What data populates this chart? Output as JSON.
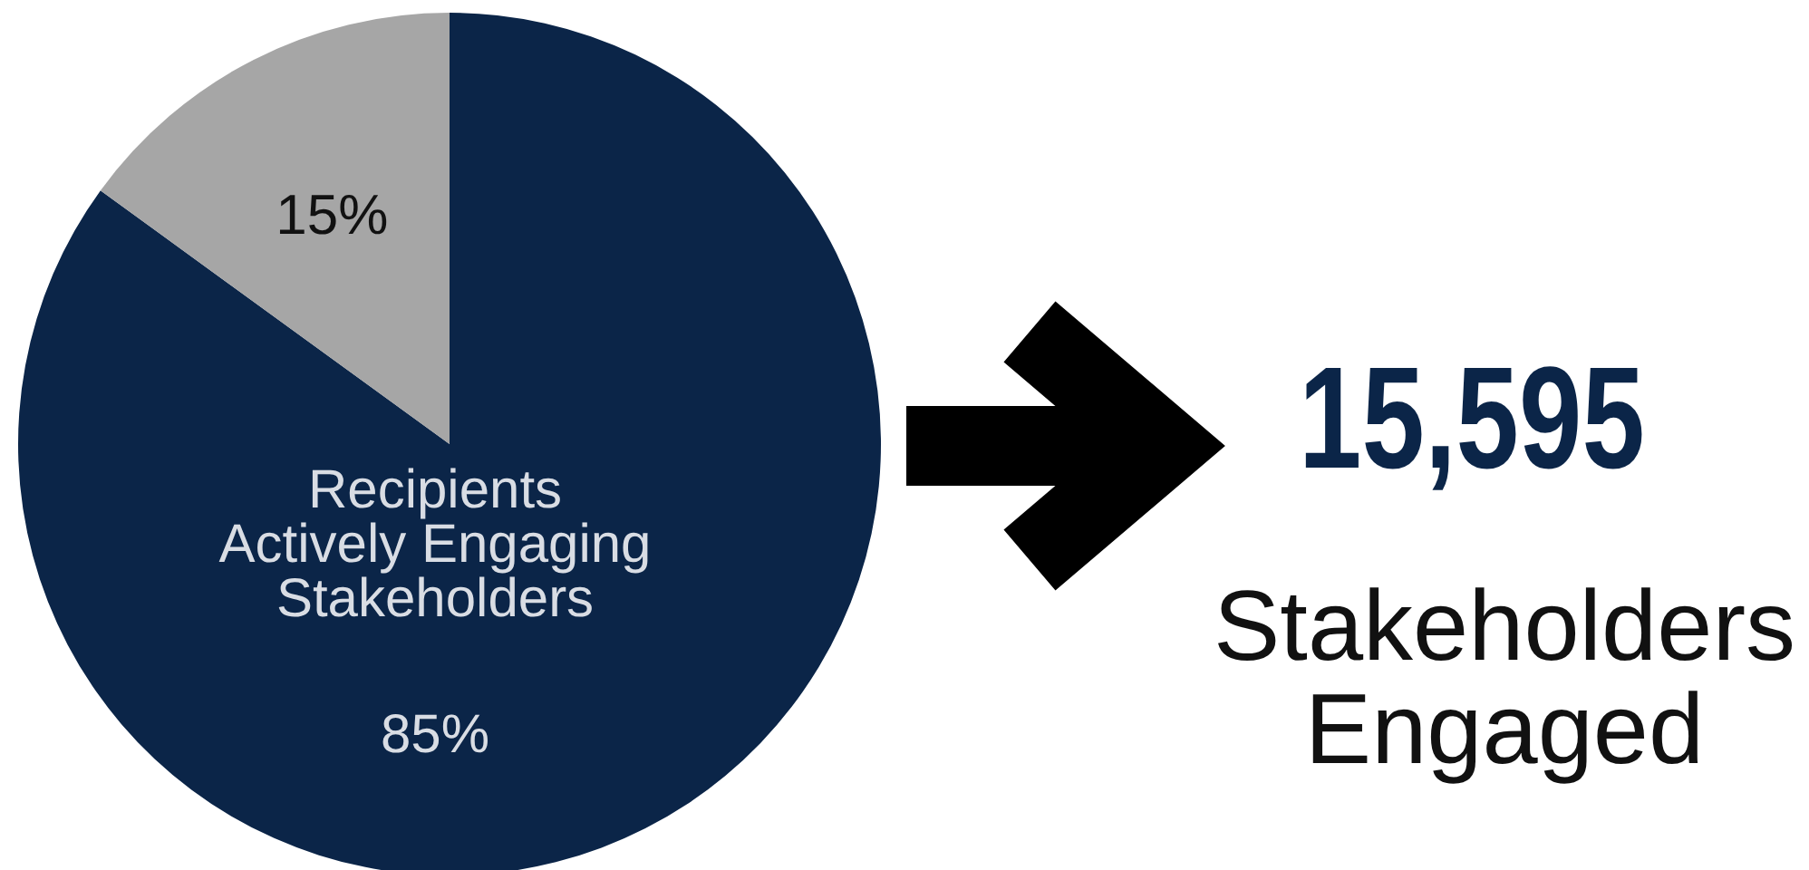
{
  "chart_data": [
    {
      "type": "pie",
      "categories": [
        "Recipients Actively Engaging Stakeholders",
        null
      ],
      "values": [
        85,
        15
      ],
      "colors": [
        "#0b2548",
        "#a6a6a6"
      ],
      "data_labels": true,
      "value_labels": [
        "85%",
        "15%"
      ]
    },
    {
      "type": "other",
      "title": "15,595",
      "subtitle": "Stakeholders Engaged"
    }
  ]
}
